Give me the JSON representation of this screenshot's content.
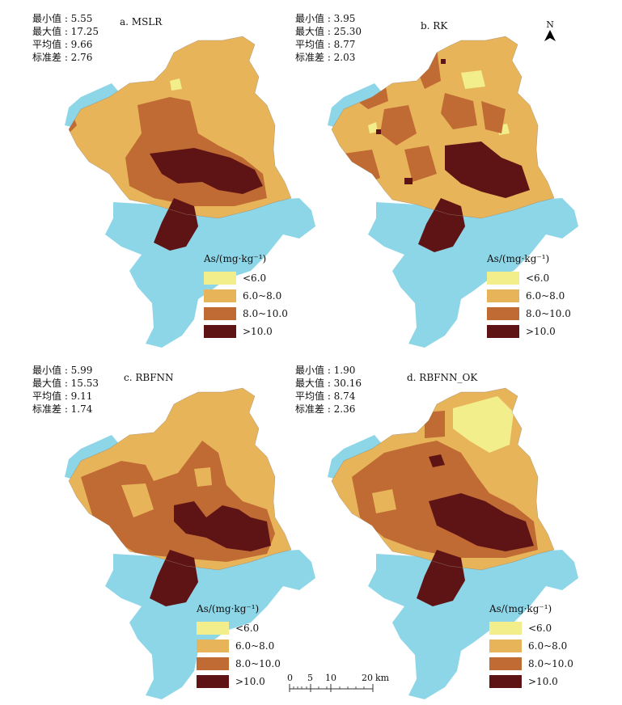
{
  "panels": [
    {
      "title": "a. MSLR",
      "stats": {
        "min": "最小值 : 5.55",
        "max": "最大值 : 17.25",
        "mean": "平均值 : 9.66",
        "std": "标准差 : 2.76"
      }
    },
    {
      "title": "b. RK",
      "stats": {
        "min": "最小值 : 3.95",
        "max": "最大值 : 25.30",
        "mean": "平均值 : 8.77",
        "std": "标准差 : 2.03"
      }
    },
    {
      "title": "c. RBFNN",
      "stats": {
        "min": "最小值 : 5.99",
        "max": "最大值 : 15.53",
        "mean": "平均值 : 9.11",
        "std": "标准差 : 1.74"
      }
    },
    {
      "title": "d. RBFNN_OK",
      "stats": {
        "min": "最小值 : 1.90",
        "max": "最大值 : 30.16",
        "mean": "平均值 : 8.74",
        "std": "标准差 : 2.36"
      }
    }
  ],
  "legend": {
    "title": "As/(mg·kg⁻¹)",
    "classes": [
      {
        "label": "<6.0",
        "color": "#f2ee8c"
      },
      {
        "label": "6.0~8.0",
        "color": "#e8b45a"
      },
      {
        "label": "8.0~10.0",
        "color": "#c06a34"
      },
      {
        "label": ">10.0",
        "color": "#5e1414"
      }
    ]
  },
  "colors": {
    "water": "#8dd6e8",
    "low": "#f2ee8c",
    "mid": "#e8b45a",
    "high": "#c06a34",
    "vhigh": "#5e1414"
  },
  "north": {
    "label": "N"
  },
  "scale": {
    "ticks": [
      "0",
      "5",
      "10",
      "20"
    ],
    "unit": "km"
  }
}
